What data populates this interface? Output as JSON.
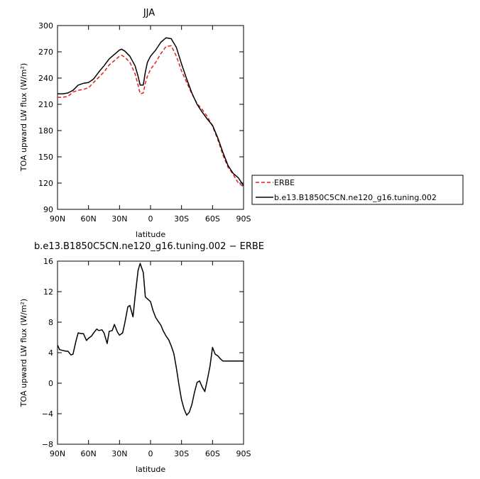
{
  "chart_data": [
    {
      "type": "line",
      "title": "JJA",
      "xlabel": "latitude",
      "ylabel": "TOA upward LW flux (W/m²)",
      "xlim": [
        90,
        -90
      ],
      "ylim": [
        90,
        300
      ],
      "xticks": [
        90,
        60,
        30,
        0,
        -30,
        -60,
        -90
      ],
      "xtick_labels": [
        "90N",
        "60N",
        "30N",
        "0",
        "30S",
        "60S",
        "90S"
      ],
      "yticks": [
        90,
        120,
        150,
        180,
        210,
        240,
        270,
        300
      ],
      "ytick_labels": [
        "90",
        "120",
        "150",
        "180",
        "210",
        "240",
        "270",
        "300"
      ],
      "legend": "right",
      "series": [
        {
          "name": "ERBE",
          "color": "#e02020",
          "dash": "dashed",
          "x": [
            90,
            85,
            80,
            75,
            70,
            65,
            60,
            55,
            50,
            45,
            40,
            35,
            30,
            28,
            25,
            20,
            15,
            12,
            10,
            7,
            5,
            3,
            0,
            -5,
            -10,
            -15,
            -20,
            -25,
            -30,
            -35,
            -40,
            -45,
            -50,
            -55,
            -60,
            -65,
            -70,
            -75,
            -80,
            -85,
            -90
          ],
          "y": [
            218,
            218,
            219,
            224,
            226,
            227,
            229,
            235,
            241,
            247,
            255,
            260,
            265,
            266,
            264,
            258,
            245,
            232,
            222,
            223,
            234,
            242,
            250,
            258,
            268,
            276,
            277,
            265,
            248,
            235,
            222,
            211,
            204,
            196,
            185,
            170,
            152,
            138,
            130,
            120,
            116
          ]
        },
        {
          "name": "b.e13.B1850C5CN.ne120_g16.tuning.002",
          "color": "#000000",
          "dash": "solid",
          "x": [
            90,
            85,
            80,
            75,
            70,
            65,
            60,
            55,
            50,
            45,
            40,
            35,
            30,
            28,
            25,
            20,
            15,
            12,
            10,
            7,
            5,
            3,
            0,
            -5,
            -10,
            -15,
            -20,
            -25,
            -30,
            -35,
            -40,
            -45,
            -50,
            -55,
            -60,
            -65,
            -70,
            -75,
            -80,
            -85,
            -90
          ],
          "y": [
            222,
            222,
            223,
            226,
            232,
            234,
            235,
            239,
            247,
            254,
            262,
            267,
            272,
            273,
            271,
            265,
            254,
            242,
            232,
            232,
            247,
            258,
            265,
            272,
            281,
            286,
            285,
            275,
            256,
            239,
            223,
            210,
            201,
            193,
            186,
            172,
            155,
            140,
            131,
            126,
            117
          ]
        }
      ]
    },
    {
      "type": "line",
      "title": "b.e13.B1850C5CN.ne120_g16.tuning.002 − ERBE",
      "xlabel": "latitude",
      "ylabel": "TOA upward LW flux (W/m²)",
      "xlim": [
        90,
        -90
      ],
      "ylim": [
        -8,
        16
      ],
      "xticks": [
        90,
        60,
        30,
        0,
        -30,
        -60,
        -90
      ],
      "xtick_labels": [
        "90N",
        "60N",
        "30N",
        "0",
        "30S",
        "60S",
        "90S"
      ],
      "yticks": [
        -8,
        -4,
        0,
        4,
        8,
        12,
        16
      ],
      "ytick_labels": [
        "−8",
        "−4",
        "0",
        "4",
        "8",
        "12",
        "16"
      ],
      "series": [
        {
          "color": "#000000",
          "dash": "solid",
          "x": [
            90,
            88,
            85,
            82,
            80,
            77,
            75,
            72,
            70,
            67,
            65,
            62,
            60,
            57,
            55,
            52,
            50,
            47,
            45,
            42,
            40,
            37,
            35,
            32,
            30,
            27,
            25,
            22,
            20,
            17,
            15,
            12,
            10,
            7,
            5,
            2.5,
            0,
            -2.5,
            -5,
            -7.5,
            -10,
            -12.5,
            -15,
            -17.5,
            -20,
            -22.5,
            -25,
            -27.5,
            -30,
            -32.5,
            -35,
            -37.5,
            -40,
            -42.5,
            -45,
            -47.5,
            -50,
            -52.5,
            -55,
            -57.5,
            -60,
            -62.5,
            -65,
            -67.5,
            -70,
            -72.5,
            -75,
            -77.5,
            -80,
            -82.5,
            -85,
            -87.5,
            -90
          ],
          "y": [
            5.0,
            4.4,
            4.3,
            4.2,
            4.2,
            3.7,
            3.8,
            5.6,
            6.6,
            6.5,
            6.5,
            5.6,
            5.9,
            6.2,
            6.6,
            7.1,
            6.9,
            7.0,
            6.6,
            5.2,
            6.8,
            6.9,
            7.7,
            6.7,
            6.3,
            6.6,
            7.8,
            10.0,
            10.2,
            8.7,
            11.3,
            14.8,
            15.7,
            14.5,
            11.3,
            11.0,
            10.7,
            9.5,
            8.6,
            8.1,
            7.6,
            6.8,
            6.2,
            5.7,
            4.9,
            3.9,
            2.0,
            -0.2,
            -2.2,
            -3.4,
            -4.2,
            -3.8,
            -2.8,
            -1.2,
            0.1,
            0.3,
            -0.5,
            -1.1,
            0.5,
            2.2,
            4.7,
            3.8,
            3.6,
            3.2,
            2.9,
            2.9,
            2.9,
            2.9,
            2.9,
            2.9,
            2.9,
            2.9,
            2.9
          ]
        }
      ]
    }
  ]
}
